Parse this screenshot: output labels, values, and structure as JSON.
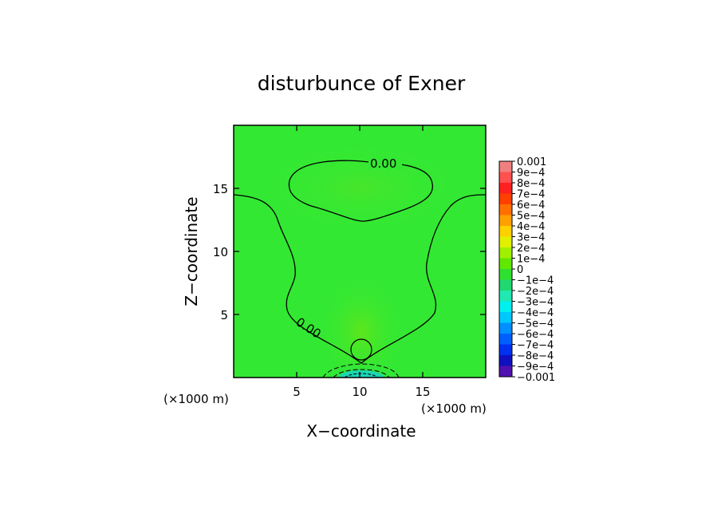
{
  "chart_data": {
    "type": "heatmap",
    "title": "disturbunce of Exner",
    "xlabel": "X−coordinate",
    "ylabel": "Z−coordinate",
    "x_unit": "(×1000 m)",
    "y_unit": "(×1000 m)",
    "xlim": [
      0,
      20
    ],
    "ylim": [
      0,
      20
    ],
    "x_ticks": [
      "5",
      "10",
      "15"
    ],
    "y_ticks": [
      "5",
      "10",
      "15"
    ],
    "x_tick_values": [
      5,
      10,
      15
    ],
    "y_tick_values": [
      5,
      10,
      15
    ],
    "contour_labels": [
      "0.00",
      "0.00"
    ],
    "colorbar": {
      "labels": [
        "0.001",
        "9e−4",
        "8e−4",
        "7e−4",
        "6e−4",
        "5e−4",
        "4e−4",
        "3e−4",
        "2e−4",
        "1e−4",
        "0",
        "−1e−4",
        "−2e−4",
        "−3e−4",
        "−4e−4",
        "−5e−4",
        "−6e−4",
        "−7e−4",
        "−8e−4",
        "−9e−4",
        "−0.001"
      ],
      "colors": [
        "#f08080",
        "#ff5050",
        "#ff2020",
        "#ff4000",
        "#ff7000",
        "#ffa000",
        "#ffd000",
        "#e0f000",
        "#a0f000",
        "#60e800",
        "#30e030",
        "#20d870",
        "#20e8b0",
        "#00f0f0",
        "#00c8ff",
        "#0090ff",
        "#0060ff",
        "#0030f0",
        "#1010c0",
        "#5010b0"
      ]
    },
    "background_color": "#33e833"
  }
}
